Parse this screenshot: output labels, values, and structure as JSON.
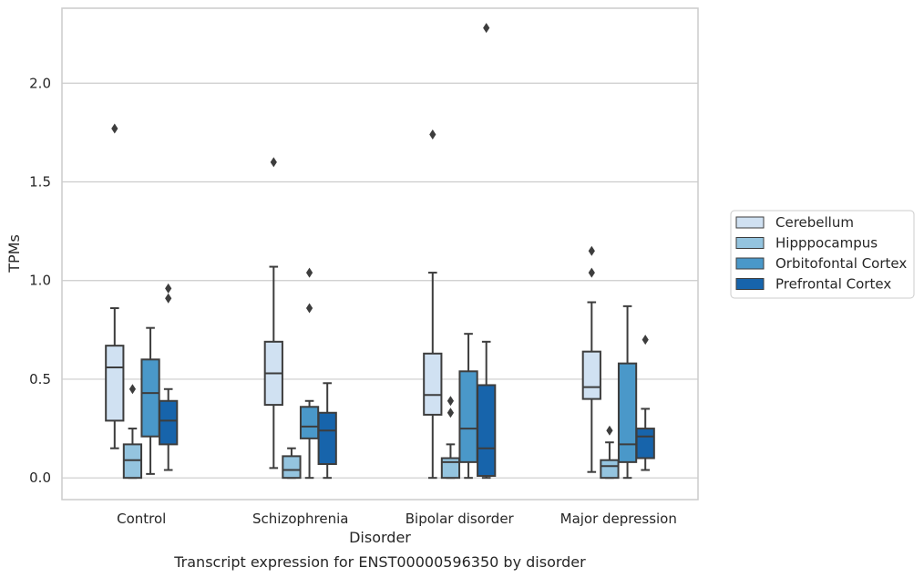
{
  "chart_data": {
    "type": "box",
    "caption": "Transcript expression for ENST00000596350 by disorder",
    "xlabel": "Disorder",
    "ylabel": "TPMs",
    "ylim": [
      -0.11,
      2.38
    ],
    "yticks": [
      0.0,
      0.5,
      1.0,
      1.5,
      2.0
    ],
    "ytick_labels": [
      "0.0",
      "0.5",
      "1.0",
      "1.5",
      "2.0"
    ],
    "grid": "horizontal",
    "legend_position": "right",
    "categories": [
      "Control",
      "Schizophrenia",
      "Bipolar disorder",
      "Major depression"
    ],
    "series": [
      {
        "name": "Cerebellum",
        "color": "#d0e1f2",
        "boxes": [
          {
            "whislo": 0.15,
            "q1": 0.29,
            "med": 0.56,
            "q3": 0.67,
            "whishi": 0.86,
            "fliers": [
              1.77
            ]
          },
          {
            "whislo": 0.05,
            "q1": 0.37,
            "med": 0.53,
            "q3": 0.69,
            "whishi": 1.07,
            "fliers": [
              1.6
            ]
          },
          {
            "whislo": 0.0,
            "q1": 0.32,
            "med": 0.42,
            "q3": 0.63,
            "whishi": 1.04,
            "fliers": [
              1.74
            ]
          },
          {
            "whislo": 0.03,
            "q1": 0.4,
            "med": 0.46,
            "q3": 0.64,
            "whishi": 0.89,
            "fliers": [
              1.04,
              1.15
            ]
          }
        ]
      },
      {
        "name": "Hipppocampus",
        "color": "#94c4df",
        "boxes": [
          {
            "whislo": 0.0,
            "q1": 0.0,
            "med": 0.09,
            "q3": 0.17,
            "whishi": 0.25,
            "fliers": [
              0.45
            ]
          },
          {
            "whislo": 0.0,
            "q1": 0.0,
            "med": 0.04,
            "q3": 0.11,
            "whishi": 0.15,
            "fliers": []
          },
          {
            "whislo": 0.0,
            "q1": 0.0,
            "med": 0.08,
            "q3": 0.1,
            "whishi": 0.17,
            "fliers": [
              0.33,
              0.39
            ]
          },
          {
            "whislo": 0.0,
            "q1": 0.0,
            "med": 0.06,
            "q3": 0.09,
            "whishi": 0.18,
            "fliers": [
              0.24
            ]
          }
        ]
      },
      {
        "name": "Orbitofontal Cortex",
        "color": "#4a98c9",
        "boxes": [
          {
            "whislo": 0.02,
            "q1": 0.21,
            "med": 0.43,
            "q3": 0.6,
            "whishi": 0.76,
            "fliers": []
          },
          {
            "whislo": 0.0,
            "q1": 0.2,
            "med": 0.26,
            "q3": 0.36,
            "whishi": 0.39,
            "fliers": [
              0.86,
              1.04
            ]
          },
          {
            "whislo": 0.0,
            "q1": 0.08,
            "med": 0.25,
            "q3": 0.54,
            "whishi": 0.73,
            "fliers": []
          },
          {
            "whislo": 0.0,
            "q1": 0.08,
            "med": 0.17,
            "q3": 0.58,
            "whishi": 0.87,
            "fliers": []
          }
        ]
      },
      {
        "name": "Prefrontal Cortex",
        "color": "#1764ab",
        "boxes": [
          {
            "whislo": 0.04,
            "q1": 0.17,
            "med": 0.29,
            "q3": 0.39,
            "whishi": 0.45,
            "fliers": [
              0.91,
              0.96
            ]
          },
          {
            "whislo": 0.0,
            "q1": 0.07,
            "med": 0.24,
            "q3": 0.33,
            "whishi": 0.48,
            "fliers": []
          },
          {
            "whislo": 0.0,
            "q1": 0.01,
            "med": 0.15,
            "q3": 0.47,
            "whishi": 0.69,
            "fliers": [
              2.28
            ]
          },
          {
            "whislo": 0.04,
            "q1": 0.1,
            "med": 0.21,
            "q3": 0.25,
            "whishi": 0.35,
            "fliers": [
              0.7
            ]
          }
        ]
      }
    ]
  }
}
